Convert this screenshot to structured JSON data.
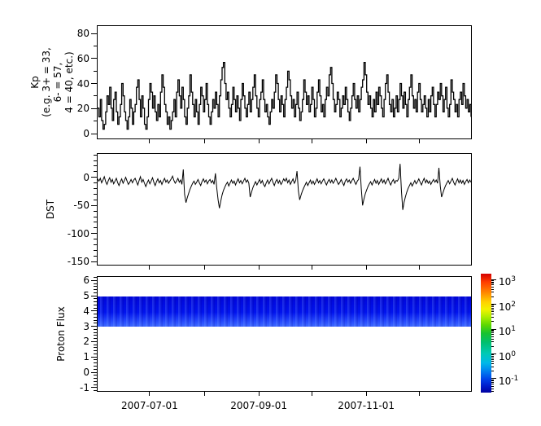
{
  "figure": {
    "background": "#ffffff",
    "axis_color": "#000000"
  },
  "xaxis": {
    "start": "2007-06-01",
    "end": "2007-12-31",
    "span_days": 213,
    "ticks": [
      {
        "day": 30,
        "label": "2007-07-01"
      },
      {
        "day": 61,
        "label": ""
      },
      {
        "day": 92,
        "label": "2007-09-01"
      },
      {
        "day": 122,
        "label": ""
      },
      {
        "day": 153,
        "label": "2007-11-01"
      },
      {
        "day": 183,
        "label": ""
      }
    ]
  },
  "chart_data": [
    {
      "type": "line",
      "style": "steps",
      "ylabel_lines": [
        "Kp",
        "(e.g. 3+ = 33,",
        "6- = 57,",
        "4 = 40, etc.)"
      ],
      "ylim": [
        -4.5,
        86.5
      ],
      "yticks": [
        0,
        20,
        40,
        60,
        80
      ],
      "yminor_step": 10,
      "line_color": "#000000",
      "x_range": [
        "2007-06-01",
        "2007-12-31"
      ],
      "values": [
        20,
        13,
        27,
        10,
        3,
        7,
        17,
        30,
        23,
        37,
        20,
        10,
        27,
        33,
        17,
        7,
        13,
        23,
        40,
        30,
        17,
        10,
        3,
        13,
        27,
        20,
        7,
        17,
        23,
        37,
        43,
        27,
        13,
        30,
        20,
        7,
        3,
        13,
        27,
        40,
        33,
        20,
        30,
        17,
        10,
        23,
        13,
        33,
        47,
        37,
        23,
        17,
        7,
        13,
        3,
        10,
        17,
        27,
        13,
        33,
        43,
        30,
        20,
        37,
        27,
        13,
        7,
        20,
        30,
        47,
        33,
        23,
        13,
        27,
        17,
        7,
        23,
        37,
        30,
        17,
        27,
        40,
        23,
        13,
        7,
        17,
        27,
        20,
        33,
        23,
        13,
        30,
        43,
        53,
        57,
        40,
        27,
        33,
        20,
        13,
        23,
        37,
        27,
        17,
        30,
        20,
        10,
        27,
        40,
        30,
        20,
        13,
        23,
        33,
        17,
        27,
        37,
        47,
        30,
        20,
        13,
        27,
        33,
        43,
        27,
        17,
        23,
        13,
        7,
        17,
        27,
        20,
        33,
        47,
        40,
        27,
        17,
        30,
        23,
        13,
        27,
        37,
        50,
        43,
        30,
        20,
        27,
        13,
        23,
        33,
        20,
        10,
        17,
        27,
        43,
        33,
        23,
        30,
        17,
        23,
        37,
        27,
        13,
        20,
        33,
        43,
        30,
        17,
        23,
        13,
        27,
        37,
        30,
        47,
        53,
        40,
        27,
        17,
        23,
        33,
        27,
        13,
        20,
        30,
        23,
        37,
        27,
        17,
        10,
        20,
        30,
        40,
        27,
        20,
        30,
        17,
        27,
        37,
        43,
        57,
        47,
        33,
        23,
        30,
        20,
        13,
        27,
        17,
        33,
        23,
        37,
        30,
        20,
        13,
        27,
        40,
        47,
        33,
        23,
        17,
        27,
        13,
        20,
        30,
        17,
        27,
        40,
        30,
        20,
        33,
        23,
        13,
        27,
        37,
        47,
        30,
        20,
        27,
        17,
        33,
        40,
        27,
        17,
        23,
        30,
        20,
        13,
        27,
        17,
        30,
        37,
        23,
        13,
        23,
        33,
        27,
        40,
        30,
        17,
        27,
        37,
        20,
        13,
        23,
        43,
        33,
        27,
        17,
        23,
        13,
        27,
        33,
        23,
        40,
        30,
        20,
        27,
        17,
        23,
        13
      ]
    },
    {
      "type": "line",
      "style": "line",
      "ylabel": "DST",
      "ylim": [
        -157,
        43
      ],
      "yticks": [
        0,
        -50,
        -100,
        -150
      ],
      "yminor_step": 10,
      "line_color": "#000000",
      "x_range": [
        "2007-06-01",
        "2007-12-31"
      ],
      "values": [
        -2,
        -6,
        -1,
        -9,
        -4,
        2,
        -7,
        -12,
        -5,
        0,
        -8,
        -3,
        -11,
        -6,
        -1,
        -9,
        -14,
        -7,
        -2,
        -10,
        -5,
        1,
        -6,
        -12,
        -8,
        -3,
        -9,
        -4,
        -1,
        -7,
        -13,
        -5,
        2,
        -8,
        -3,
        -10,
        -16,
        -9,
        -4,
        -11,
        -6,
        0,
        -8,
        -14,
        -7,
        -2,
        -9,
        -5,
        -12,
        -6,
        -1,
        -8,
        -4,
        -10,
        -6,
        -2,
        3,
        -5,
        -10,
        -6,
        -1,
        -8,
        -4,
        -12,
        15,
        -30,
        -45,
        -36,
        -28,
        -21,
        -15,
        -10,
        -6,
        -12,
        -8,
        -3,
        -9,
        -14,
        -7,
        -2,
        -8,
        -4,
        -11,
        -6,
        -3,
        -9,
        -5,
        -12,
        8,
        -18,
        -40,
        -55,
        -42,
        -31,
        -23,
        -17,
        -12,
        -8,
        -15,
        -9,
        -4,
        -10,
        -6,
        -13,
        -7,
        -2,
        -9,
        -5,
        -11,
        -6,
        -1,
        -8,
        -4,
        -10,
        -35,
        -26,
        -18,
        -12,
        -7,
        -13,
        -8,
        -3,
        -10,
        -5,
        -12,
        -16,
        -9,
        -4,
        -11,
        -6,
        -1,
        -8,
        -14,
        -7,
        -3,
        -10,
        -5,
        -12,
        -8,
        -2,
        -6,
        -1,
        -9,
        -4,
        -12,
        -7,
        -2,
        -10,
        -5,
        12,
        -24,
        -40,
        -31,
        -24,
        -18,
        -13,
        -8,
        -14,
        -9,
        -4,
        -11,
        -6,
        -12,
        -7,
        -2,
        -9,
        -5,
        -11,
        -6,
        -2,
        -8,
        -13,
        -7,
        -3,
        -9,
        -4,
        -10,
        -6,
        -1,
        -7,
        -12,
        -8,
        -3,
        -9,
        -14,
        -6,
        -2,
        -8,
        -4,
        -10,
        -5,
        -1,
        -7,
        -12,
        -6,
        -3,
        20,
        -20,
        -50,
        -38,
        -29,
        -22,
        -16,
        -11,
        -7,
        -13,
        -8,
        -3,
        -10,
        -5,
        -12,
        -7,
        -2,
        -9,
        -4,
        -11,
        -6,
        -1,
        -8,
        -13,
        -7,
        -3,
        -10,
        -5,
        -6,
        -1,
        25,
        -25,
        -58,
        -44,
        -34,
        -26,
        -19,
        -14,
        -9,
        -15,
        -10,
        -5,
        -11,
        -7,
        -2,
        -8,
        -13,
        -6,
        -1,
        -9,
        -4,
        -10,
        -6,
        -12,
        -7,
        -3,
        -8,
        -4,
        -10,
        18,
        -15,
        -35,
        -27,
        -20,
        -14,
        -9,
        -5,
        -11,
        -6,
        -1,
        -8,
        -13,
        -7,
        -2,
        -9,
        -4,
        -10,
        -5,
        -12,
        -7,
        -3,
        -9,
        -4,
        -8
      ]
    },
    {
      "type": "heatmap",
      "ylabel": "Proton Flux",
      "ylim": [
        -1.28,
        6.28
      ],
      "yticks": [
        -1,
        0,
        1,
        2,
        3,
        4,
        5,
        6
      ],
      "yminor_step": 0.2,
      "colormap": "jet",
      "x_range": [
        "2007-06-01",
        "2007-12-31"
      ],
      "band": {
        "y_from": 3.0,
        "y_to": 5.0,
        "log10_flux_top": -1.2,
        "log10_flux_bottom": -0.4,
        "color_top": "#0105d8",
        "color_mid": "#0113ee",
        "color_bottom": "#2b50ff",
        "streak_color": "#3a66ff"
      }
    }
  ],
  "colorbar": {
    "scale": "log",
    "range_log10": [
      -1.56,
      3.23
    ],
    "ticks": [
      {
        "base": "10",
        "exp": "3",
        "value": 1000
      },
      {
        "base": "10",
        "exp": "2",
        "value": 100
      },
      {
        "base": "10",
        "exp": "1",
        "value": 10
      },
      {
        "base": "10",
        "exp": "0",
        "value": 1
      },
      {
        "base": "10",
        "exp": "-1",
        "value": 0.1
      }
    ],
    "gradient_top_to_bottom": [
      "#d40000 0%",
      "#ff3c00 7%",
      "#ff8800 16%",
      "#ffd300 24%",
      "#f2f200 30%",
      "#b0ee00 36%",
      "#5fd800 43%",
      "#18c22e 50%",
      "#00bf70 58%",
      "#00c9b4 67%",
      "#00b9e8 75%",
      "#0080f0 82%",
      "#0040e8 89%",
      "#0018c8 95%",
      "#0000a0 100%"
    ]
  }
}
